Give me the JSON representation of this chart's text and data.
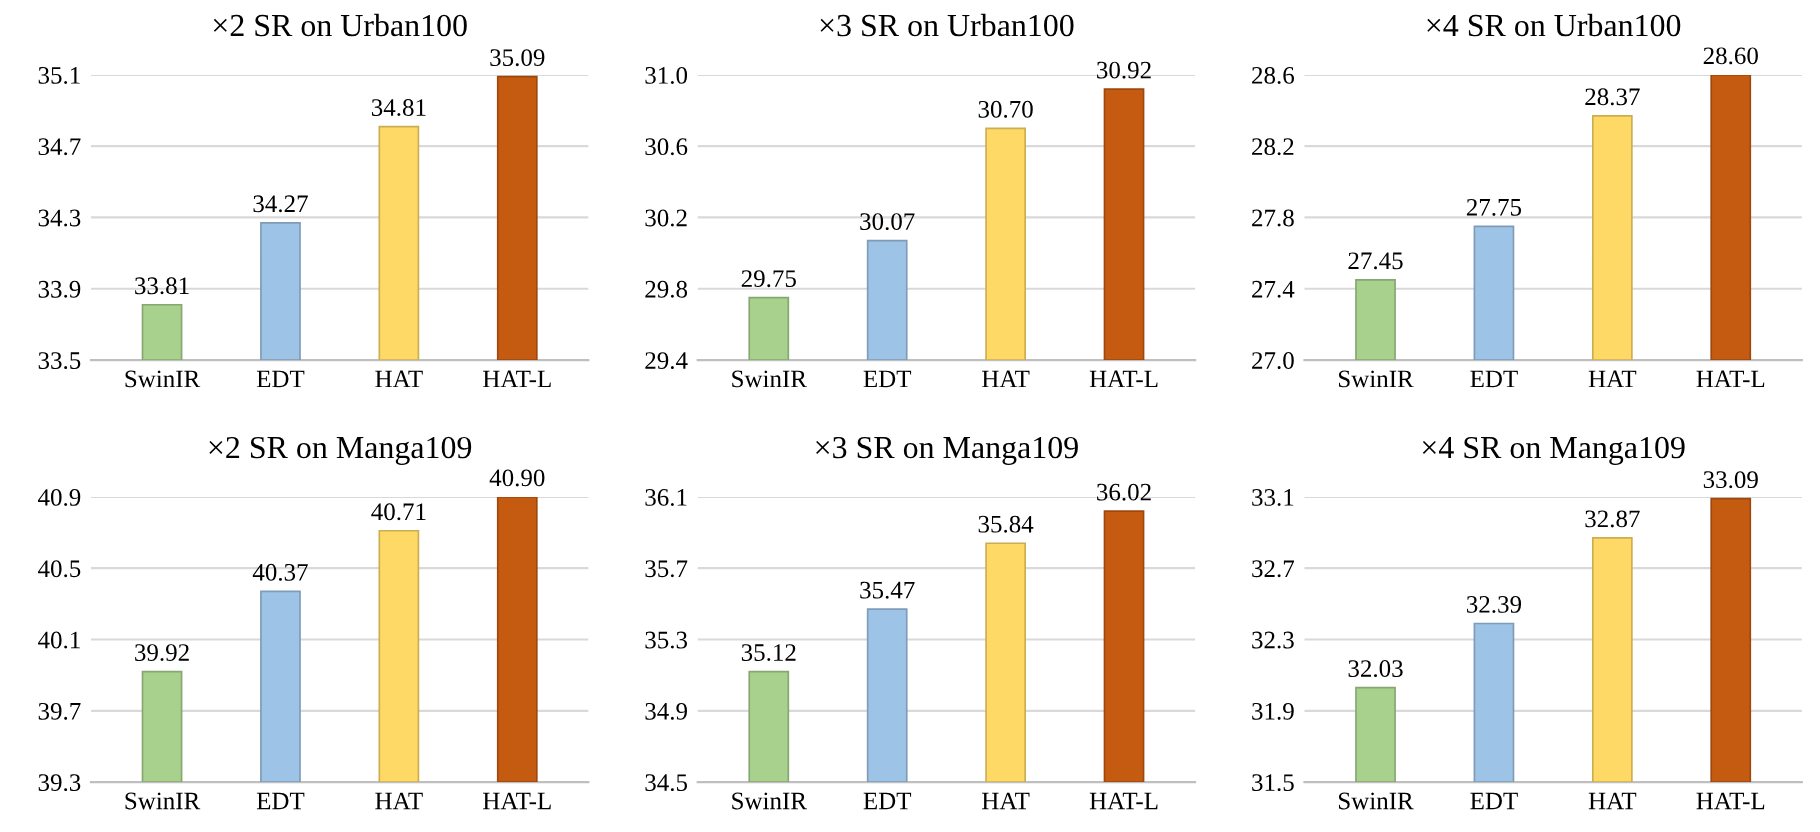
{
  "chart_data": [
    {
      "type": "bar",
      "title": "×2 SR on Urban100",
      "categories": [
        "SwinIR",
        "EDT",
        "HAT",
        "HAT-L"
      ],
      "values": [
        33.81,
        34.27,
        34.81,
        35.09
      ],
      "value_labels": [
        "33.81",
        "34.27",
        "34.81",
        "35.09"
      ],
      "colors": [
        "#a9d18e",
        "#9dc3e6",
        "#ffd966",
        "#c55a11"
      ],
      "ylim": [
        33.5,
        35.1
      ],
      "yticks": [
        33.5,
        33.9,
        34.3,
        34.7,
        35.1
      ],
      "grid": "y"
    },
    {
      "type": "bar",
      "title": "×3 SR on Urban100",
      "categories": [
        "SwinIR",
        "EDT",
        "HAT",
        "HAT-L"
      ],
      "values": [
        29.75,
        30.07,
        30.7,
        30.92
      ],
      "value_labels": [
        "29.75",
        "30.07",
        "30.70",
        "30.92"
      ],
      "colors": [
        "#a9d18e",
        "#9dc3e6",
        "#ffd966",
        "#c55a11"
      ],
      "ylim": [
        29.4,
        31.0
      ],
      "yticks": [
        29.4,
        29.8,
        30.2,
        30.6,
        {
          "value": 31.0,
          "label": "31.0"
        }
      ],
      "grid": "y"
    },
    {
      "type": "bar",
      "title": "×4 SR on Urban100",
      "categories": [
        "SwinIR",
        "EDT",
        "HAT",
        "HAT-L"
      ],
      "values": [
        27.45,
        27.75,
        28.37,
        28.6
      ],
      "value_labels": [
        "27.45",
        "27.75",
        "28.37",
        "28.60"
      ],
      "colors": [
        "#a9d18e",
        "#9dc3e6",
        "#ffd966",
        "#c55a11"
      ],
      "ylim": [
        27.0,
        28.6
      ],
      "yticks": [
        {
          "value": 27.0,
          "label": "27.0"
        },
        27.4,
        27.8,
        28.2,
        28.6
      ],
      "grid": "y"
    },
    {
      "type": "bar",
      "title": "×2 SR on Manga109",
      "categories": [
        "SwinIR",
        "EDT",
        "HAT",
        "HAT-L"
      ],
      "values": [
        39.92,
        40.37,
        40.71,
        40.9
      ],
      "value_labels": [
        "39.92",
        "40.37",
        "40.71",
        "40.90"
      ],
      "colors": [
        "#a9d18e",
        "#9dc3e6",
        "#ffd966",
        "#c55a11"
      ],
      "ylim": [
        39.3,
        40.9
      ],
      "yticks": [
        39.3,
        39.7,
        40.1,
        40.5,
        40.9
      ],
      "grid": "y"
    },
    {
      "type": "bar",
      "title": "×3 SR on Manga109",
      "categories": [
        "SwinIR",
        "EDT",
        "HAT",
        "HAT-L"
      ],
      "values": [
        35.12,
        35.47,
        35.84,
        36.02
      ],
      "value_labels": [
        "35.12",
        "35.47",
        "35.84",
        "36.02"
      ],
      "colors": [
        "#a9d18e",
        "#9dc3e6",
        "#ffd966",
        "#c55a11"
      ],
      "ylim": [
        34.5,
        36.1
      ],
      "yticks": [
        34.5,
        34.9,
        35.3,
        35.7,
        36.1
      ],
      "grid": "y"
    },
    {
      "type": "bar",
      "title": "×4 SR on Manga109",
      "categories": [
        "SwinIR",
        "EDT",
        "HAT",
        "HAT-L"
      ],
      "values": [
        32.03,
        32.39,
        32.87,
        33.09
      ],
      "value_labels": [
        "32.03",
        "32.39",
        "32.87",
        "33.09"
      ],
      "colors": [
        "#a9d18e",
        "#9dc3e6",
        "#ffd966",
        "#c55a11"
      ],
      "ylim": [
        31.5,
        33.1
      ],
      "yticks": [
        31.5,
        31.9,
        32.3,
        32.7,
        33.1
      ],
      "grid": "y"
    }
  ]
}
